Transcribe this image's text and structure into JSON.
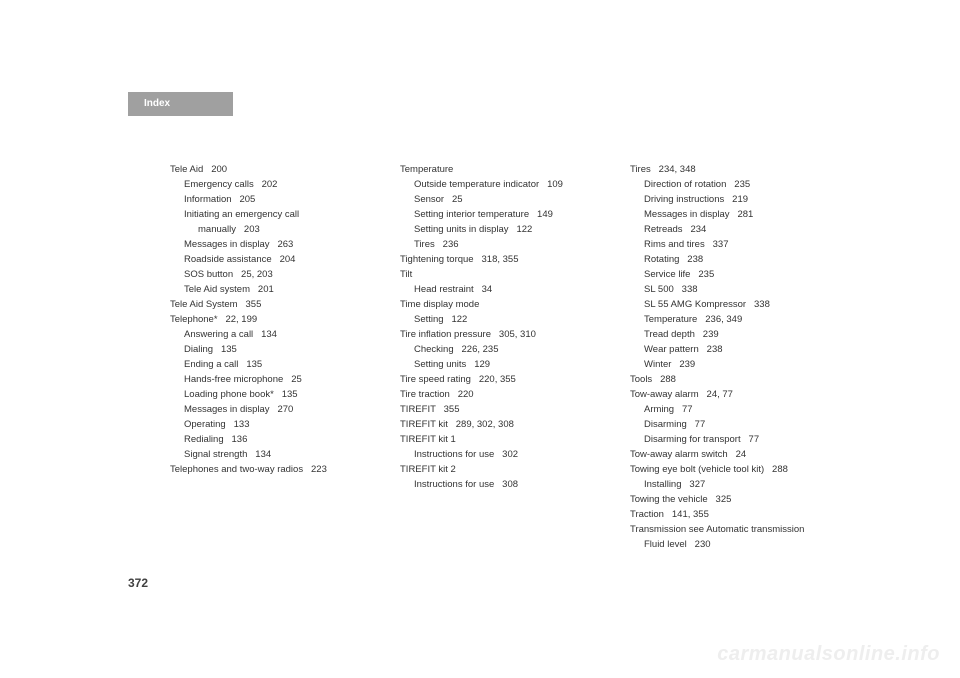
{
  "header": {
    "label": "Index"
  },
  "page_number": "372",
  "watermark": "carmanualsonline.info",
  "columns": [
    {
      "entries": [
        {
          "level": 0,
          "text": "Tele Aid   200"
        },
        {
          "level": 1,
          "text": "Emergency calls   202"
        },
        {
          "level": 1,
          "text": "Information   205"
        },
        {
          "level": 1,
          "text": "Initiating an emergency call"
        },
        {
          "level": 2,
          "text": "manually   203"
        },
        {
          "level": 1,
          "text": "Messages in display   263"
        },
        {
          "level": 1,
          "text": "Roadside assistance   204"
        },
        {
          "level": 1,
          "text": "SOS button   25, 203"
        },
        {
          "level": 1,
          "text": "Tele Aid system   201"
        },
        {
          "level": 0,
          "text": "Tele Aid System   355"
        },
        {
          "level": 0,
          "text": "Telephone*   22, 199"
        },
        {
          "level": 1,
          "text": "Answering a call   134"
        },
        {
          "level": 1,
          "text": "Dialing   135"
        },
        {
          "level": 1,
          "text": "Ending a call   135"
        },
        {
          "level": 1,
          "text": "Hands-free microphone   25"
        },
        {
          "level": 1,
          "text": "Loading phone book*   135"
        },
        {
          "level": 1,
          "text": "Messages in display   270"
        },
        {
          "level": 1,
          "text": "Operating   133"
        },
        {
          "level": 1,
          "text": "Redialing   136"
        },
        {
          "level": 1,
          "text": "Signal strength   134"
        },
        {
          "level": 0,
          "text": "Telephones and two-way radios   223"
        }
      ]
    },
    {
      "entries": [
        {
          "level": 0,
          "text": "Temperature"
        },
        {
          "level": 1,
          "text": "Outside temperature indicator   109"
        },
        {
          "level": 1,
          "text": "Sensor   25"
        },
        {
          "level": 1,
          "text": "Setting interior temperature   149"
        },
        {
          "level": 1,
          "text": "Setting units in display   122"
        },
        {
          "level": 1,
          "text": "Tires   236"
        },
        {
          "level": 0,
          "text": "Tightening torque   318, 355"
        },
        {
          "level": 0,
          "text": "Tilt"
        },
        {
          "level": 1,
          "text": "Head restraint   34"
        },
        {
          "level": 0,
          "text": "Time display mode"
        },
        {
          "level": 1,
          "text": "Setting   122"
        },
        {
          "level": 0,
          "text": "Tire inflation pressure   305, 310"
        },
        {
          "level": 1,
          "text": "Checking   226, 235"
        },
        {
          "level": 1,
          "text": "Setting units   129"
        },
        {
          "level": 0,
          "text": "Tire speed rating   220, 355"
        },
        {
          "level": 0,
          "text": "Tire traction   220"
        },
        {
          "level": 0,
          "text": "TIREFIT   355"
        },
        {
          "level": 0,
          "text": "TIREFIT kit   289, 302, 308"
        },
        {
          "level": 0,
          "text": "TIREFIT kit 1"
        },
        {
          "level": 1,
          "text": "Instructions for use   302"
        },
        {
          "level": 0,
          "text": "TIREFIT kit 2"
        },
        {
          "level": 1,
          "text": "Instructions for use   308"
        }
      ]
    },
    {
      "entries": [
        {
          "level": 0,
          "text": "Tires   234, 348"
        },
        {
          "level": 1,
          "text": "Direction of rotation   235"
        },
        {
          "level": 1,
          "text": "Driving instructions   219"
        },
        {
          "level": 1,
          "text": "Messages in display   281"
        },
        {
          "level": 1,
          "text": "Retreads   234"
        },
        {
          "level": 1,
          "text": "Rims and tires   337"
        },
        {
          "level": 1,
          "text": "Rotating   238"
        },
        {
          "level": 1,
          "text": "Service life   235"
        },
        {
          "level": 1,
          "text": "SL 500   338"
        },
        {
          "level": 1,
          "text": "SL 55 AMG Kompressor   338"
        },
        {
          "level": 1,
          "text": "Temperature   236, 349"
        },
        {
          "level": 1,
          "text": "Tread depth   239"
        },
        {
          "level": 1,
          "text": "Wear pattern   238"
        },
        {
          "level": 1,
          "text": "Winter   239"
        },
        {
          "level": 0,
          "text": "Tools   288"
        },
        {
          "level": 0,
          "text": "Tow-away alarm   24, 77"
        },
        {
          "level": 1,
          "text": "Arming   77"
        },
        {
          "level": 1,
          "text": "Disarming   77"
        },
        {
          "level": 1,
          "text": "Disarming for transport   77"
        },
        {
          "level": 0,
          "text": "Tow-away alarm switch   24"
        },
        {
          "level": 0,
          "text": "Towing eye bolt (vehicle tool kit)   288"
        },
        {
          "level": 1,
          "text": "Installing   327"
        },
        {
          "level": 0,
          "text": "Towing the vehicle   325"
        },
        {
          "level": 0,
          "text": "Traction   141, 355"
        },
        {
          "level": 0,
          "text": "Transmission see Automatic transmission"
        },
        {
          "level": 1,
          "text": "Fluid level   230"
        }
      ]
    }
  ]
}
